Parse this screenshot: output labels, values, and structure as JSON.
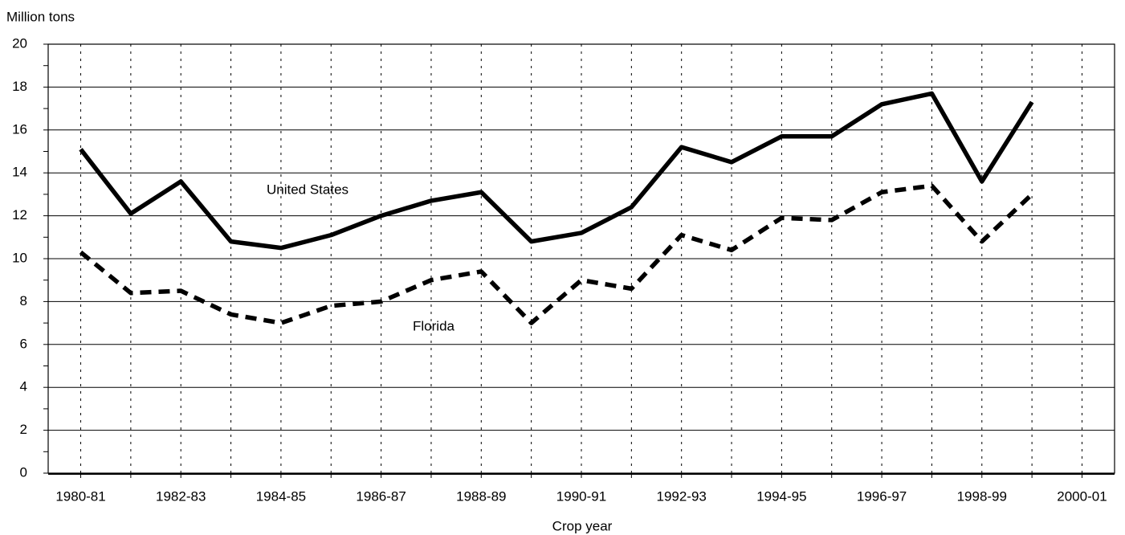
{
  "chart_data": {
    "type": "line",
    "y_label": "Million tons",
    "x_label": "Crop year",
    "categories": [
      "1980-81",
      null,
      "1982-83",
      null,
      "1984-85",
      null,
      "1986-87",
      null,
      "1988-89",
      null,
      "1990-91",
      null,
      "1992-93",
      null,
      "1994-95",
      null,
      "1996-97",
      null,
      "1998-99",
      null,
      "2000-01"
    ],
    "series": [
      {
        "name": "United States",
        "color": "#000000",
        "dash": false,
        "values": [
          15.1,
          12.1,
          13.6,
          10.8,
          10.5,
          11.1,
          12.0,
          12.7,
          13.1,
          10.8,
          11.2,
          12.4,
          15.2,
          14.5,
          15.7,
          15.7,
          17.2,
          17.7,
          13.6,
          17.3,
          null
        ]
      },
      {
        "name": "Florida",
        "color": "#000000",
        "dash": true,
        "values": [
          10.3,
          8.4,
          8.5,
          7.4,
          7.0,
          7.8,
          8.0,
          9.0,
          9.4,
          7.0,
          9.0,
          8.6,
          11.1,
          10.4,
          11.9,
          11.8,
          13.1,
          13.4,
          10.8,
          13.0,
          null
        ]
      }
    ],
    "ylim": [
      0,
      20
    ],
    "yticks": [
      0,
      2,
      4,
      6,
      8,
      10,
      12,
      14,
      16,
      18,
      20
    ],
    "grid": true
  }
}
